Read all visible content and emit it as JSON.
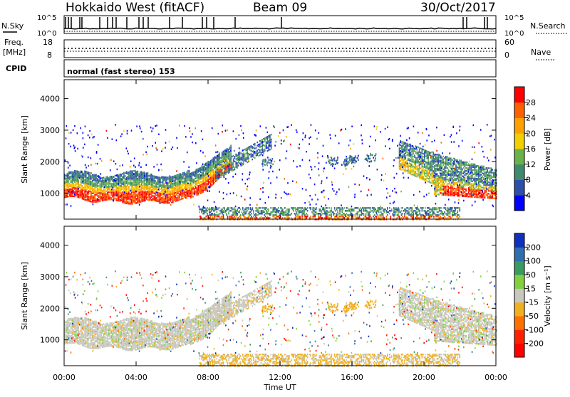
{
  "header": {
    "station": "Hokkaido West (fitACF)",
    "beam": "Beam 09",
    "date": "30/Oct/2017"
  },
  "noise_panel": {
    "left_label": "N.Sky",
    "right_label": "N.Search",
    "left_ticks": [
      "10^5",
      "10^0"
    ],
    "right_ticks": [
      "10^5",
      "10^0"
    ]
  },
  "freq_panel": {
    "left_label_1": "Freq.",
    "left_label_2": "[MHz]",
    "right_label": "Nave",
    "left_ticks": [
      "18",
      "8"
    ],
    "right_ticks": [
      "60",
      "0"
    ]
  },
  "cpid": {
    "label": "CPID",
    "text": "normal (fast stereo) 153"
  },
  "x_axis": {
    "label": "Time UT",
    "ticks": [
      "00:00",
      "04:00",
      "08:00",
      "12:00",
      "16:00",
      "20:00",
      "00:00"
    ]
  },
  "power_panel": {
    "ylabel": "Slant Range [km]",
    "yticks": [
      "1000",
      "2000",
      "3000",
      "4000"
    ],
    "colorbar_label": "Power [dB]",
    "colorbar_ticks": [
      "4",
      "8",
      "12",
      "16",
      "20",
      "24",
      "28"
    ],
    "colorbar_colors": [
      "#0000ff",
      "#2e4fa8",
      "#3f8a6e",
      "#6ab24a",
      "#f0d000",
      "#ffa000",
      "#ff6000",
      "#ff0000"
    ]
  },
  "velocity_panel": {
    "ylabel": "Slant Range [km]",
    "yticks": [
      "1000",
      "2000",
      "3000",
      "4000"
    ],
    "colorbar_label": "Velocity [m s⁻¹]",
    "colorbar_ticks": [
      "200",
      "100",
      "50",
      "15",
      "-15",
      "-50",
      "-100",
      "-200"
    ],
    "colorbar_colors": [
      "#1030c0",
      "#2f6fb0",
      "#3a9a60",
      "#80d040",
      "#c8c8c0",
      "#f0b020",
      "#ff7000",
      "#ff2000",
      "#ff0000"
    ]
  },
  "chart_data": {
    "type": "heatmap",
    "x_range_hours": [
      0,
      24
    ],
    "y_range_km": [
      180,
      4600
    ],
    "power_scale_db": [
      0,
      32
    ],
    "power_features": [
      {
        "t0": 0,
        "t1": 9.3,
        "r0": 700,
        "r1": 1700,
        "kind": "main-echo"
      },
      {
        "t0": 8.2,
        "t1": 11.5,
        "r0": 1500,
        "r1": 2800,
        "kind": "rising-echo"
      },
      {
        "t0": 18.5,
        "t1": 24,
        "r0": 700,
        "r1": 2700,
        "kind": "evening-echo"
      },
      {
        "t0": 7.5,
        "t1": 22,
        "r0": 180,
        "r1": 600,
        "kind": "near-range"
      }
    ],
    "velocity_scale_ms": [
      -200,
      200
    ]
  }
}
